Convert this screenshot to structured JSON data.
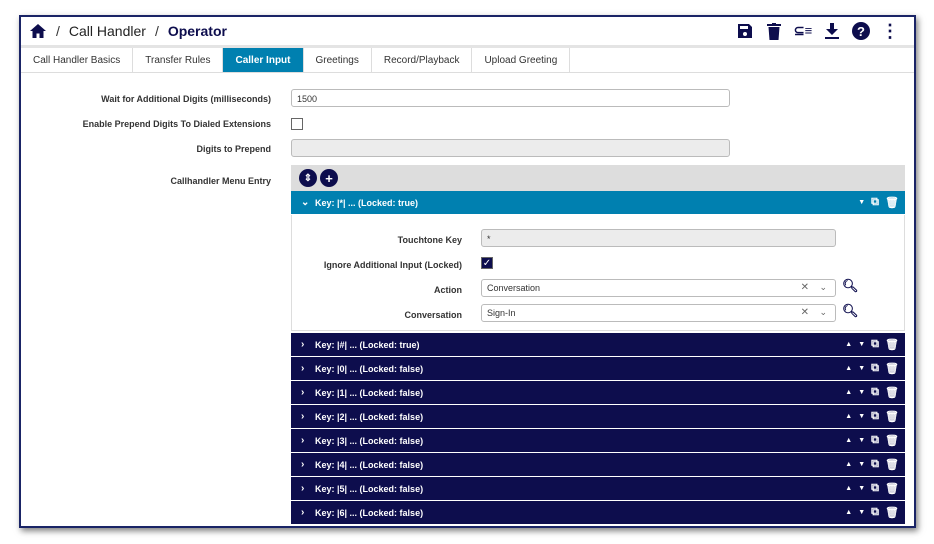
{
  "breadcrumb": {
    "home_icon": "home-icon",
    "parent": "Call Handler",
    "current": "Operator"
  },
  "toolbar": {
    "icons": [
      "save-icon",
      "trash-icon",
      "list-icon",
      "download-icon",
      "help-icon",
      "more-vertical-icon"
    ]
  },
  "tabs": [
    {
      "label": "Call Handler Basics"
    },
    {
      "label": "Transfer Rules"
    },
    {
      "label": "Caller Input",
      "active": true
    },
    {
      "label": "Greetings"
    },
    {
      "label": "Record/Playback"
    },
    {
      "label": "Upload Greeting"
    }
  ],
  "form": {
    "wait_label": "Wait for Additional Digits (milliseconds)",
    "wait_value": "1500",
    "prepend_enable_label": "Enable Prepend Digits To Dialed Extensions",
    "prepend_enable_checked": false,
    "digits_label": "Digits to Prepend",
    "digits_value": "",
    "menu_label": "Callhandler Menu Entry"
  },
  "expanded": {
    "title": "Key: |*| ... (Locked: true)",
    "touchtone_label": "Touchtone Key",
    "touchtone_value": "*",
    "ignore_label": "Ignore Additional Input (Locked)",
    "ignore_checked": true,
    "action_label": "Action",
    "action_value": "Conversation",
    "conversation_label": "Conversation",
    "conversation_value": "Sign-In"
  },
  "entries": [
    {
      "title": "Key: |#| ... (Locked: true)"
    },
    {
      "title": "Key: |0| ... (Locked: false)"
    },
    {
      "title": "Key: |1| ... (Locked: false)"
    },
    {
      "title": "Key: |2| ... (Locked: false)"
    },
    {
      "title": "Key: |3| ... (Locked: false)"
    },
    {
      "title": "Key: |4| ... (Locked: false)"
    },
    {
      "title": "Key: |5| ... (Locked: false)"
    },
    {
      "title": "Key: |6| ... (Locked: false)"
    }
  ],
  "colors": {
    "navy": "#0d0d4d",
    "accent": "#0080b0"
  }
}
